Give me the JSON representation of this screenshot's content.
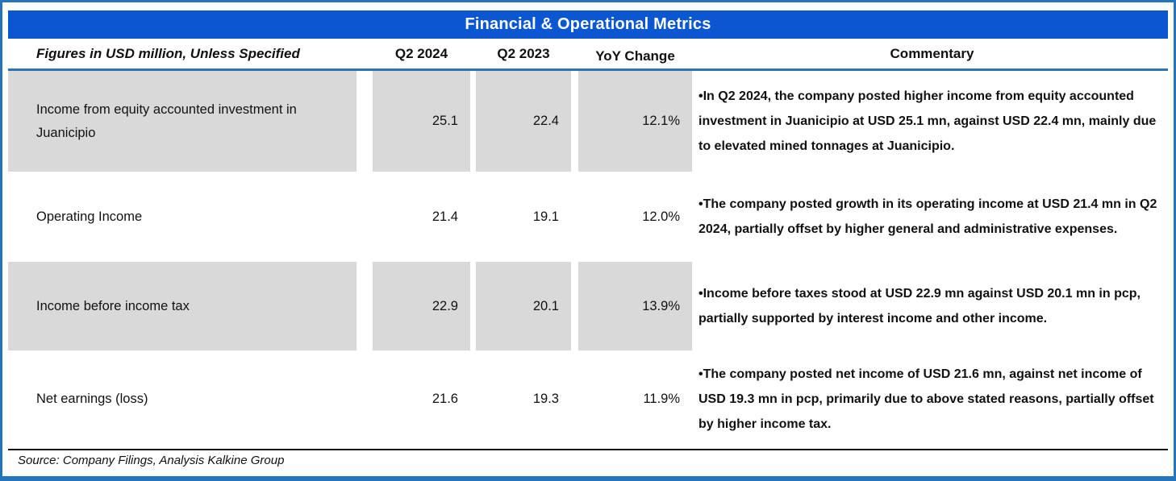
{
  "title": "Financial & Operational Metrics",
  "columns": {
    "figures": "Figures in USD million, Unless Specified",
    "q2_2024": "Q2 2024",
    "q2_2023": "Q2 2023",
    "yoy": "YoY Change",
    "commentary": "Commentary"
  },
  "rows": [
    {
      "label": "Income from equity accounted investment in Juanicipio",
      "q2_2024": "25.1",
      "q2_2023": "22.4",
      "yoy": "12.1%",
      "commentary": "•In Q2 2024, the company posted higher income from equity accounted investment in Juanicipio at USD 25.1 mn, against USD 22.4 mn, mainly due to elevated mined tonnages at Juanicipio."
    },
    {
      "label": "Operating Income",
      "q2_2024": "21.4",
      "q2_2023": "19.1",
      "yoy": "12.0%",
      "commentary": "•The company posted growth in its operating income at USD 21.4 mn in Q2 2024, partially offset by higher general and administrative expenses."
    },
    {
      "label": "Income before income tax",
      "q2_2024": "22.9",
      "q2_2023": "20.1",
      "yoy": "13.9%",
      "commentary": "•Income before taxes stood at USD 22.9 mn against USD 20.1 mn in pcp, partially supported by interest income and other income."
    },
    {
      "label": "Net earnings (loss)",
      "q2_2024": "21.6",
      "q2_2023": "19.3",
      "yoy": "11.9%",
      "commentary": "•The company posted net income of USD 21.6 mn, against net income of USD 19.3 mn in pcp, primarily due to above stated reasons, partially offset by higher income tax."
    }
  ],
  "source": "Source: Company Filings, Analysis Kalkine Group",
  "colors": {
    "title_bar": "#0b57d2",
    "header_underline": "#2e75b6",
    "outer_border": "#2473bd",
    "shaded_row": "#d9d9d9",
    "source_divider": "#111111"
  }
}
